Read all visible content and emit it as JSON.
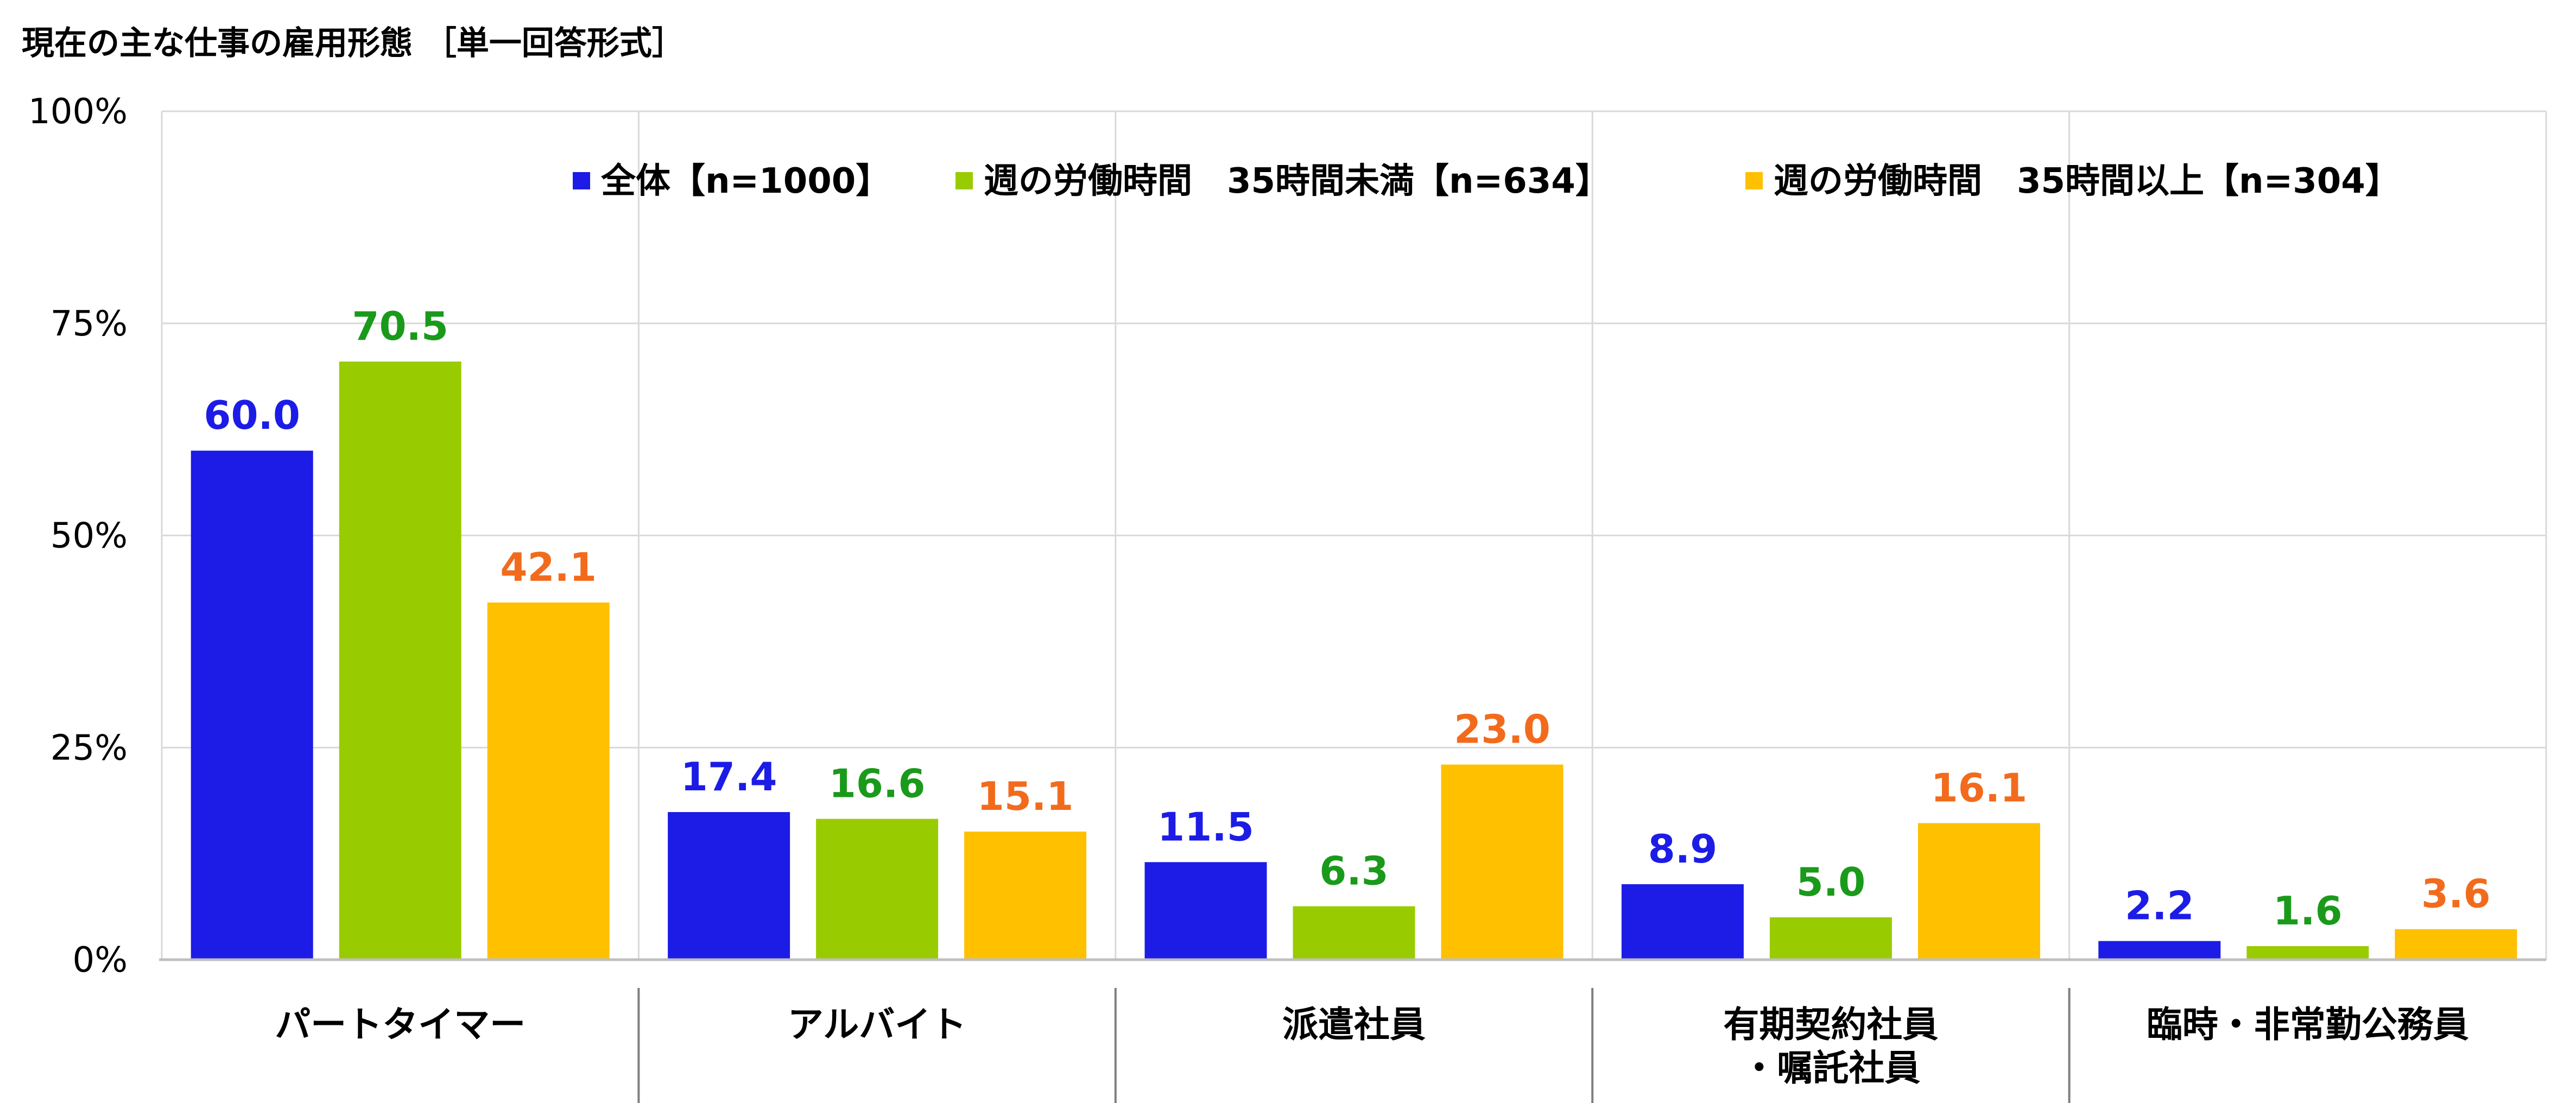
{
  "chart_data": {
    "type": "bar",
    "title": "現在の主な仕事の雇用形態 ［単一回答形式］",
    "categories": [
      [
        "パートタイマー"
      ],
      [
        "アルバイト"
      ],
      [
        "派遣社員"
      ],
      [
        "有期契約社員",
        "・嘱託社員"
      ],
      [
        "臨時・非常勤公務員"
      ]
    ],
    "series": [
      {
        "name": "全体【n=1000】",
        "color": "#1c1ce6",
        "label_color": "#1c1ce6",
        "values": [
          60.0,
          17.4,
          11.5,
          8.9,
          2.2
        ]
      },
      {
        "name": "週の労働時間　35時間未満【n=634】",
        "color": "#99cc00",
        "label_color": "#1a9a1a",
        "values": [
          70.5,
          16.6,
          6.3,
          5.0,
          1.6
        ]
      },
      {
        "name": "週の労働時間　35時間以上【n=304】",
        "color": "#ffc000",
        "label_color": "#f26b1d",
        "values": [
          42.1,
          15.1,
          23.0,
          16.1,
          3.6
        ]
      }
    ],
    "y_ticks": [
      "0%",
      "25%",
      "50%",
      "75%",
      "100%"
    ],
    "ylim": [
      0,
      100
    ],
    "grid": true,
    "legend_position": "top-right"
  }
}
